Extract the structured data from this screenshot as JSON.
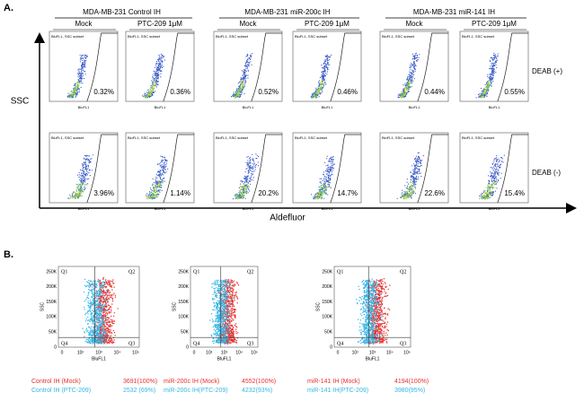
{
  "panel_a": {
    "label": "A.",
    "groups": [
      {
        "title": "MDA-MB-231 Control IH",
        "conditions": [
          "Mock",
          "PTC-209  1μM"
        ]
      },
      {
        "title": "MDA-MB-231 miR-200c IH",
        "conditions": [
          "Mock",
          "PTC-209  1μM"
        ]
      },
      {
        "title": "MDA-MB-231 miR-141 IH",
        "conditions": [
          "Mock",
          "PTC-209  1μM"
        ]
      }
    ],
    "y_axis_label": "SSC",
    "x_axis_label": "Aldefluor",
    "plot_x_label": "BluFL1",
    "gate_label": "BluFL1, SSC subset",
    "rows": [
      {
        "label": "DEAB (+)",
        "percentages": [
          "0.32%",
          "0.36%",
          "0.52%",
          "0.46%",
          "0.44%",
          "0.55%"
        ]
      },
      {
        "label": "DEAB (-)",
        "percentages": [
          "3.96%",
          "1.14%",
          "20.2%",
          "14.7%",
          "22.6%",
          "15.4%"
        ]
      }
    ]
  },
  "panel_b": {
    "label": "B.",
    "y_axis_label": "SSC",
    "x_axis_label": "BluFL1",
    "yticks": [
      "250K",
      "200K",
      "150K",
      "100K",
      "50K",
      "0"
    ],
    "xticks": [
      "0",
      "10²",
      "10³",
      "10⁴",
      "10⁵"
    ],
    "quadrants": [
      "Q1",
      "Q2",
      "Q4",
      "Q3"
    ],
    "plots": [
      {
        "legend": [
          {
            "name": "Control IH (Mock)",
            "count": "3691(100%)",
            "color": "#e8312f"
          },
          {
            "name": "Control IH (PTC-209)",
            "count": "2532 (69%)",
            "color": "#35b6e6"
          }
        ]
      },
      {
        "legend": [
          {
            "name": "miR-200c IH (Mock)",
            "count": "4552(100%)",
            "color": "#e8312f"
          },
          {
            "name": "miR-200c IH(PTC-209)",
            "count": "4232(93%)",
            "color": "#35b6e6"
          }
        ]
      },
      {
        "legend": [
          {
            "name": "miR-141 IH  (Mock)",
            "count": "4194(100%)",
            "color": "#e8312f"
          },
          {
            "name": "miR-141 IH(PTC-209)",
            "count": "3980(95%)",
            "color": "#35b6e6"
          }
        ]
      }
    ]
  }
}
